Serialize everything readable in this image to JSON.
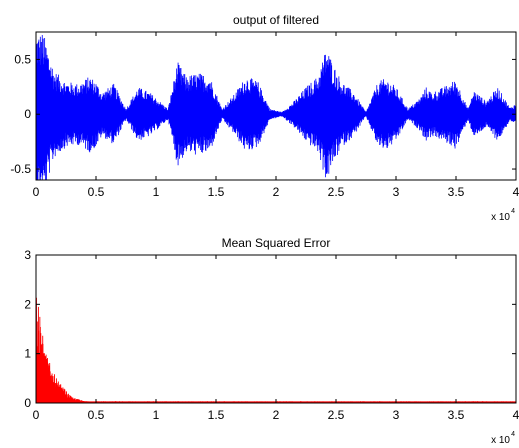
{
  "chart_data": [
    {
      "type": "line",
      "title": "output of filtered",
      "xlabel": "",
      "ylabel": "",
      "xlim": [
        0,
        40000
      ],
      "ylim": [
        -0.6,
        0.75
      ],
      "x_ticks": [
        0,
        5000,
        10000,
        15000,
        20000,
        25000,
        30000,
        35000,
        40000
      ],
      "x_tick_labels": [
        "0",
        "0.5",
        "1",
        "1.5",
        "2",
        "2.5",
        "3",
        "3.5",
        "4"
      ],
      "y_ticks": [
        -0.5,
        0,
        0.5
      ],
      "y_tick_labels": [
        "-0.5",
        "0",
        "0.5"
      ],
      "x_multiplier_base": "x 10",
      "x_multiplier_exp": "4",
      "grid": false,
      "color": "#0000ff",
      "series": [
        {
          "x": [
            0,
            600,
            1500,
            2500,
            3500,
            4500,
            5000,
            5500,
            6500,
            7500,
            8500,
            9500,
            10000,
            11000,
            11800,
            12500,
            13500,
            14500,
            15500,
            16500,
            17500,
            18500,
            19500,
            20500,
            21500,
            22500,
            23500,
            24200,
            24800,
            25500,
            26500,
            27500,
            28500,
            29200,
            30000,
            31000,
            32000,
            32500,
            33000,
            34000,
            35000,
            36000,
            36500,
            37500,
            38500,
            39500,
            40000
          ],
          "envelope": [
            0.75,
            0.75,
            0.4,
            0.3,
            0.28,
            0.35,
            0.3,
            0.2,
            0.28,
            0.05,
            0.25,
            0.2,
            0.15,
            0.05,
            0.48,
            0.35,
            0.38,
            0.35,
            0.05,
            0.18,
            0.35,
            0.3,
            0.05,
            0.02,
            0.12,
            0.25,
            0.35,
            0.62,
            0.45,
            0.3,
            0.2,
            0.02,
            0.3,
            0.33,
            0.25,
            0.05,
            0.15,
            0.25,
            0.2,
            0.25,
            0.32,
            0.05,
            0.22,
            0.12,
            0.25,
            0.06,
            0.1
          ]
        }
      ]
    },
    {
      "type": "area",
      "title": "Mean Squared Error",
      "xlabel": "",
      "ylabel": "",
      "xlim": [
        0,
        40000
      ],
      "ylim": [
        0,
        3
      ],
      "x_ticks": [
        0,
        5000,
        10000,
        15000,
        20000,
        25000,
        30000,
        35000,
        40000
      ],
      "x_tick_labels": [
        "0",
        "0.5",
        "1",
        "1.5",
        "2",
        "2.5",
        "3",
        "3.5",
        "4"
      ],
      "y_ticks": [
        0,
        1,
        2,
        3
      ],
      "y_tick_labels": [
        "0",
        "1",
        "2",
        "3"
      ],
      "x_multiplier_base": "x 10",
      "x_multiplier_exp": "4",
      "grid": false,
      "color": "#ff0000",
      "series": [
        {
          "x": [
            0,
            200,
            400,
            700,
            1000,
            1500,
            2000,
            2500,
            3000,
            4000,
            5000,
            40000
          ],
          "y": [
            2.3,
            2.2,
            1.7,
            1.1,
            0.9,
            0.6,
            0.4,
            0.25,
            0.12,
            0.04,
            0.02,
            0.02
          ]
        }
      ]
    }
  ]
}
